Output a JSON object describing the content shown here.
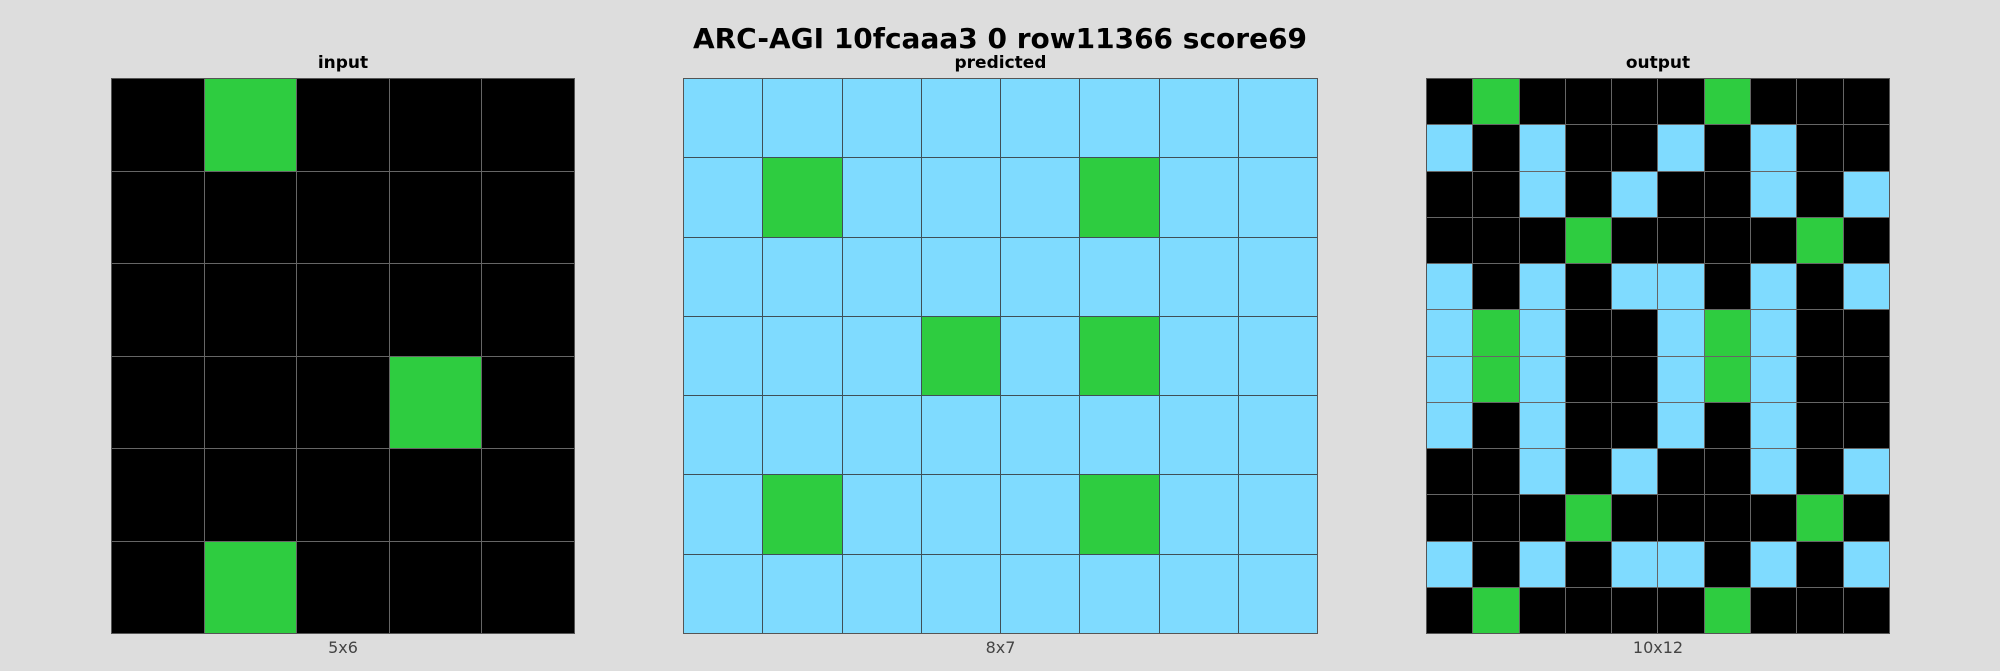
{
  "title": "ARC-AGI 10fcaaa3 0 row11366 score69",
  "colors": {
    "0": "#000000",
    "3": "#2ecc40",
    "8": "#7fdbff",
    "background": "#dddddd"
  },
  "panels": [
    {
      "title": "input",
      "caption": "5x6",
      "rows": [
        [
          0,
          3,
          0,
          0,
          0
        ],
        [
          0,
          0,
          0,
          0,
          0
        ],
        [
          0,
          0,
          0,
          0,
          0
        ],
        [
          0,
          0,
          0,
          3,
          0
        ],
        [
          0,
          0,
          0,
          0,
          0
        ],
        [
          0,
          3,
          0,
          0,
          0
        ]
      ]
    },
    {
      "title": "predicted",
      "caption": "8x7",
      "rows": [
        [
          8,
          8,
          8,
          8,
          8,
          8,
          8,
          8
        ],
        [
          8,
          3,
          8,
          8,
          8,
          3,
          8,
          8
        ],
        [
          8,
          8,
          8,
          8,
          8,
          8,
          8,
          8
        ],
        [
          8,
          8,
          8,
          3,
          8,
          3,
          8,
          8
        ],
        [
          8,
          8,
          8,
          8,
          8,
          8,
          8,
          8
        ],
        [
          8,
          3,
          8,
          8,
          8,
          3,
          8,
          8
        ],
        [
          8,
          8,
          8,
          8,
          8,
          8,
          8,
          8
        ]
      ]
    },
    {
      "title": "output",
      "caption": "10x12",
      "rows": [
        [
          0,
          3,
          0,
          0,
          0,
          0,
          3,
          0,
          0,
          0
        ],
        [
          8,
          0,
          8,
          0,
          0,
          8,
          0,
          8,
          0,
          0
        ],
        [
          0,
          0,
          8,
          0,
          8,
          0,
          0,
          8,
          0,
          8
        ],
        [
          0,
          0,
          0,
          3,
          0,
          0,
          0,
          0,
          3,
          0
        ],
        [
          8,
          0,
          8,
          0,
          8,
          8,
          0,
          8,
          0,
          8
        ],
        [
          8,
          3,
          8,
          0,
          0,
          8,
          3,
          8,
          0,
          0
        ],
        [
          8,
          3,
          8,
          0,
          0,
          8,
          3,
          8,
          0,
          0
        ],
        [
          8,
          0,
          8,
          0,
          0,
          8,
          0,
          8,
          0,
          0
        ],
        [
          0,
          0,
          8,
          0,
          8,
          0,
          0,
          8,
          0,
          8
        ],
        [
          0,
          0,
          0,
          3,
          0,
          0,
          0,
          0,
          3,
          0
        ],
        [
          8,
          0,
          8,
          0,
          8,
          8,
          0,
          8,
          0,
          8
        ],
        [
          0,
          3,
          0,
          0,
          0,
          0,
          3,
          0,
          0,
          0
        ]
      ]
    }
  ]
}
